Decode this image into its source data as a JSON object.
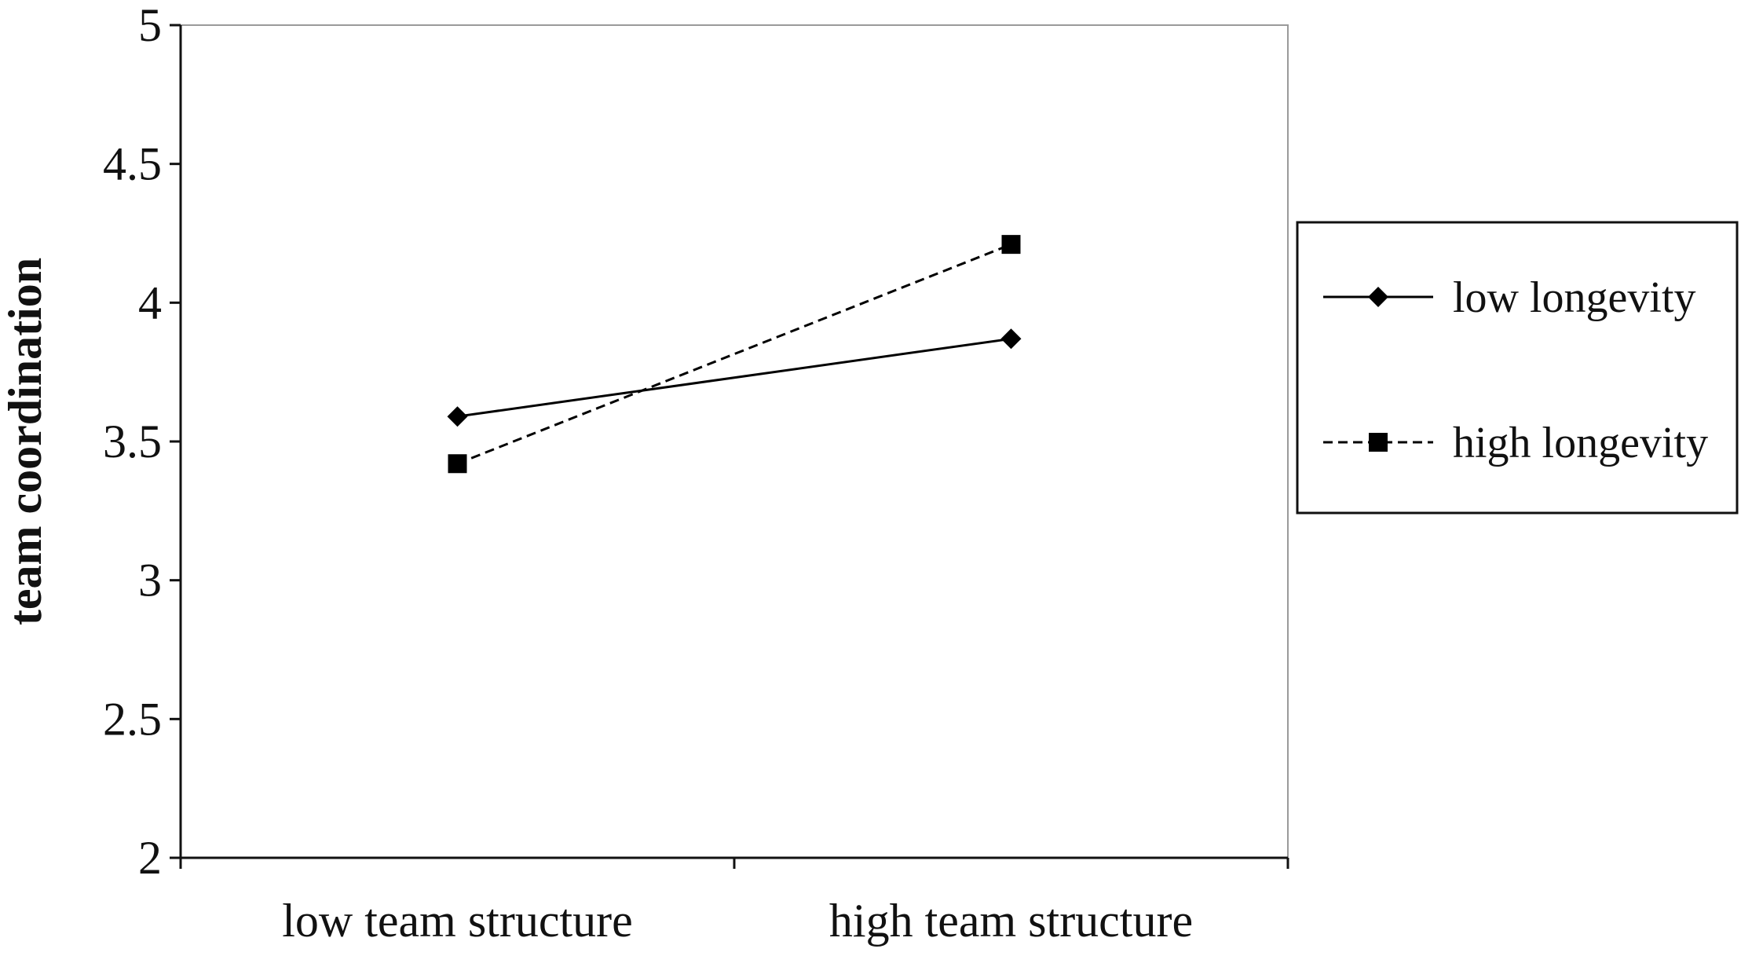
{
  "chart_data": {
    "type": "line",
    "title": "",
    "xlabel": "",
    "ylabel": "team coordination",
    "categories": [
      "low team structure",
      "high team structure"
    ],
    "ylim": [
      2,
      5
    ],
    "yticks": [
      "2",
      "2.5",
      "3",
      "3.5",
      "4",
      "4.5",
      "5"
    ],
    "grid": false,
    "legend_position": "right",
    "series": [
      {
        "name": "low longevity",
        "values": [
          3.59,
          3.87
        ],
        "line_style": "solid",
        "marker": "diamond",
        "color": "#000000"
      },
      {
        "name": "high longevity",
        "values": [
          3.42,
          4.21
        ],
        "line_style": "dashed",
        "marker": "square",
        "color": "#000000"
      }
    ]
  }
}
